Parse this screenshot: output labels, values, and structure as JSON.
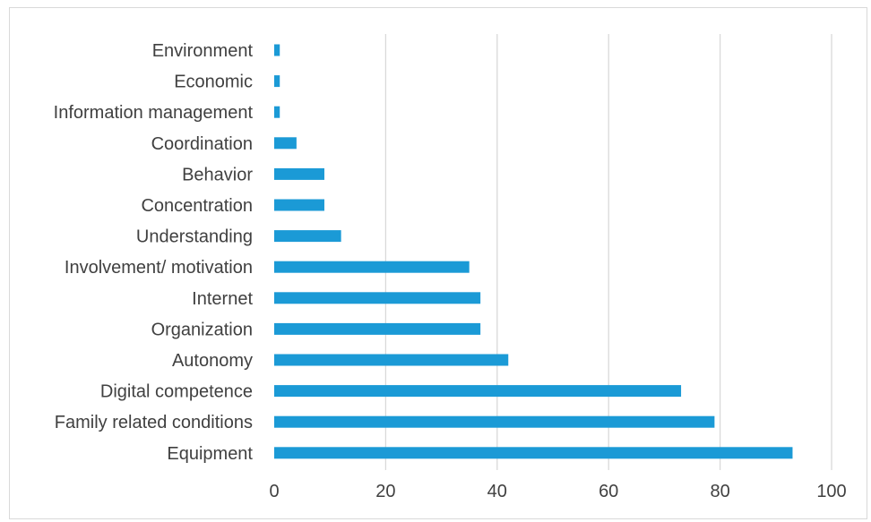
{
  "chart_data": {
    "type": "bar",
    "orientation": "horizontal",
    "categories": [
      "Environment",
      "Economic",
      "Information management",
      "Coordination",
      "Behavior",
      "Concentration",
      "Understanding",
      "Involvement/ motivation",
      "Internet",
      "Organization",
      "Autonomy",
      "Digital competence",
      "Family related conditions",
      "Equipment"
    ],
    "values": [
      1,
      1,
      1,
      4,
      9,
      9,
      12,
      35,
      37,
      37,
      42,
      73,
      79,
      93
    ],
    "xlim": [
      0,
      100
    ],
    "xticks": [
      "0",
      "20",
      "40",
      "60",
      "80",
      "100"
    ],
    "title": "",
    "xlabel": "",
    "ylabel": "",
    "grid": "vertical",
    "legend": "none",
    "bar_color": "#1b9ad6"
  }
}
